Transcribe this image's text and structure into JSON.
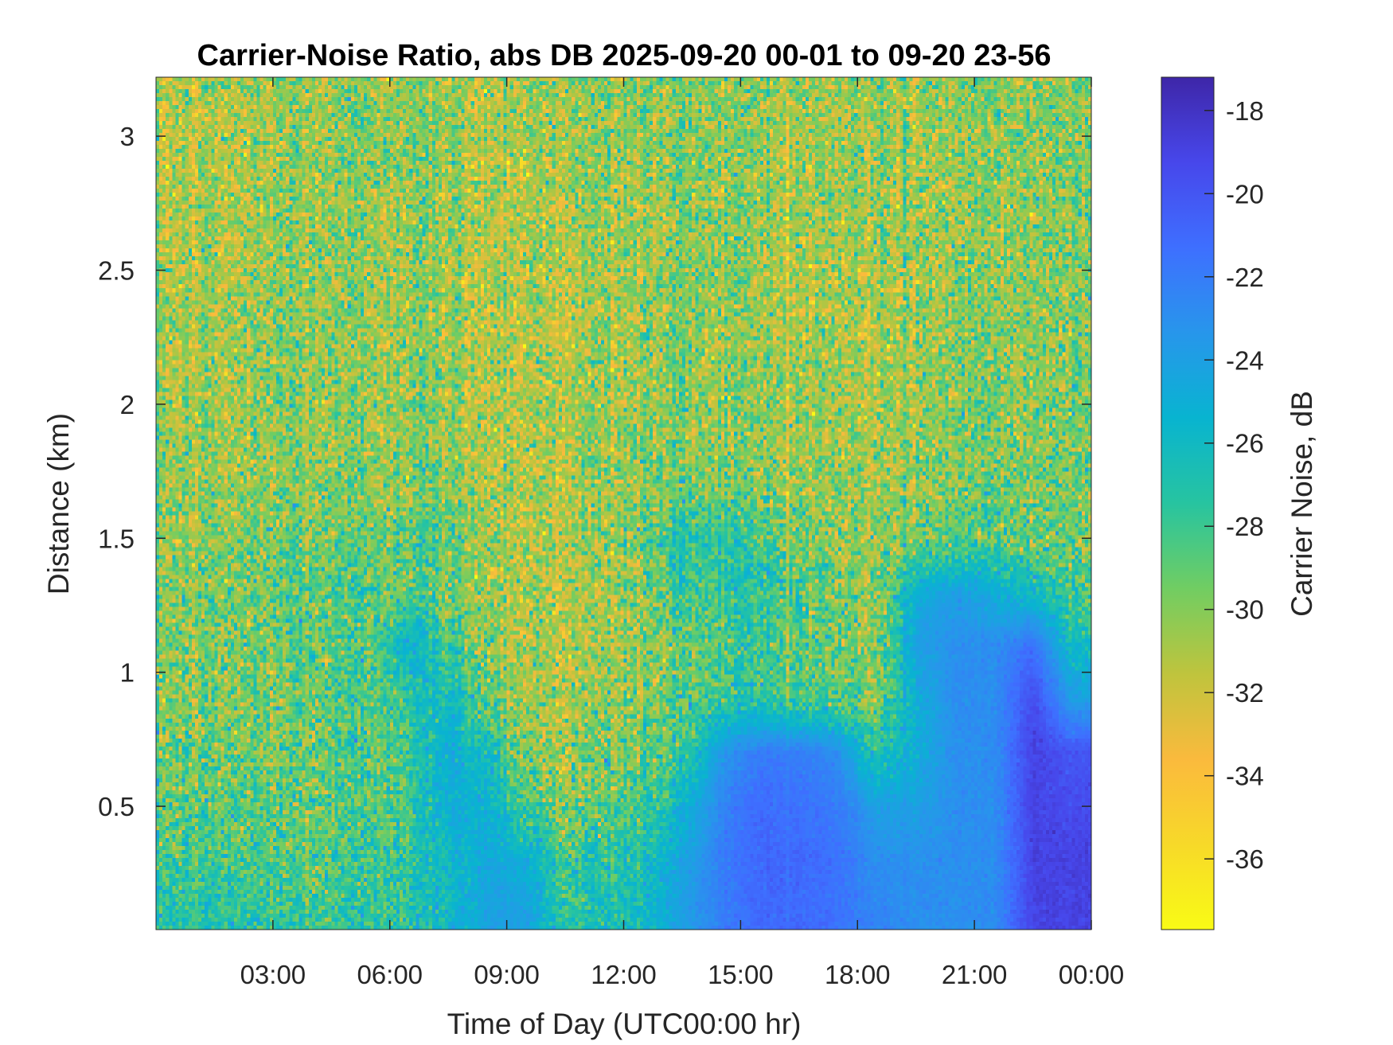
{
  "chart_data": {
    "type": "heatmap",
    "title": "Carrier-Noise Ratio, abs DB 2025-09-20 00-01 to 09-20 23-56",
    "xlabel": "Time of Day (UTC00:00 hr)",
    "ylabel": "Distance (km)",
    "colorbar_label": "Carrier Noise, dB",
    "colormap": "parula (reversed: high values dark blue, low values yellow)",
    "xlim_hours": [
      0,
      24
    ],
    "ylim": [
      0.04,
      3.22
    ],
    "clim": [
      -37.7,
      -17.2
    ],
    "x_ticks": [
      {
        "value": 3,
        "label": "03:00"
      },
      {
        "value": 6,
        "label": "06:00"
      },
      {
        "value": 9,
        "label": "09:00"
      },
      {
        "value": 12,
        "label": "12:00"
      },
      {
        "value": 15,
        "label": "15:00"
      },
      {
        "value": 18,
        "label": "18:00"
      },
      {
        "value": 21,
        "label": "21:00"
      },
      {
        "value": 24,
        "label": "00:00"
      }
    ],
    "y_ticks": [
      {
        "value": 0.5,
        "label": "0.5"
      },
      {
        "value": 1,
        "label": "1"
      },
      {
        "value": 1.5,
        "label": "1.5"
      },
      {
        "value": 2,
        "label": "2"
      },
      {
        "value": 2.5,
        "label": "2.5"
      },
      {
        "value": 3,
        "label": "3"
      }
    ],
    "colorbar_ticks": [
      {
        "value": -18,
        "label": "-18"
      },
      {
        "value": -20,
        "label": "-20"
      },
      {
        "value": -22,
        "label": "-22"
      },
      {
        "value": -24,
        "label": "-24"
      },
      {
        "value": -26,
        "label": "-26"
      },
      {
        "value": -28,
        "label": "-28"
      },
      {
        "value": -30,
        "label": "-30"
      },
      {
        "value": -32,
        "label": "-32"
      },
      {
        "value": -34,
        "label": "-34"
      },
      {
        "value": -36,
        "label": "-36"
      }
    ],
    "grid": false,
    "x_hours": [
      0.5,
      1.5,
      2.5,
      3.5,
      4.5,
      5.5,
      6.5,
      7.5,
      8.5,
      9.5,
      10.5,
      11.5,
      12.5,
      13.5,
      14.5,
      15.5,
      16.5,
      17.5,
      18.5,
      19.5,
      20.5,
      21.5,
      22.5,
      23.5
    ],
    "y_km": [
      0.1,
      0.3,
      0.5,
      0.7,
      0.9,
      1.1,
      1.3,
      1.5,
      1.7,
      1.9,
      2.1,
      2.3,
      2.5,
      2.7,
      2.9,
      3.1
    ],
    "z_db": [
      [
        -27,
        -27,
        -27.5,
        -27.5,
        -28,
        -27.5,
        -27,
        -26,
        -24,
        -24,
        -27,
        -27,
        -26,
        -24,
        -22,
        -21,
        -21,
        -21.5,
        -22.5,
        -23,
        -23,
        -23,
        -19,
        -19
      ],
      [
        -28,
        -28,
        -28.5,
        -28.5,
        -28.5,
        -28,
        -27.5,
        -26,
        -24.5,
        -25,
        -28,
        -27.5,
        -26.5,
        -24.5,
        -22,
        -21,
        -21,
        -21.5,
        -23,
        -23,
        -23,
        -23,
        -19,
        -19
      ],
      [
        -29,
        -29,
        -29,
        -29,
        -29,
        -28.5,
        -28,
        -25,
        -25,
        -28,
        -29.5,
        -29,
        -28,
        -25.5,
        -22.5,
        -21,
        -21.5,
        -22,
        -24,
        -24,
        -23,
        -23,
        -19,
        -19.5
      ],
      [
        -29.5,
        -29.5,
        -29.5,
        -29.5,
        -29,
        -28.5,
        -28,
        -25,
        -26,
        -30,
        -30.5,
        -30,
        -29.5,
        -28,
        -23.5,
        -22,
        -22,
        -23,
        -27,
        -25,
        -23,
        -23,
        -19,
        -20
      ],
      [
        -30,
        -30,
        -29.5,
        -29.5,
        -29,
        -28.5,
        -27,
        -26,
        -29,
        -30.5,
        -31,
        -30.5,
        -30,
        -29,
        -27.5,
        -27.5,
        -28,
        -29,
        -29.5,
        -25,
        -23,
        -23,
        -19.5,
        -24
      ],
      [
        -30,
        -30,
        -29.5,
        -29,
        -29,
        -28.5,
        -25,
        -28,
        -30,
        -31,
        -31,
        -31,
        -30.5,
        -29.5,
        -28,
        -28,
        -28.5,
        -29.5,
        -30,
        -24,
        -23,
        -23,
        -21.5,
        -26
      ],
      [
        -30,
        -30,
        -29.5,
        -29,
        -29,
        -28.5,
        -28.5,
        -29.5,
        -30.5,
        -31,
        -31,
        -31,
        -30,
        -28,
        -27.5,
        -27.5,
        -28.5,
        -30,
        -30.5,
        -25,
        -24,
        -25,
        -26,
        -28.5
      ],
      [
        -30.5,
        -30.5,
        -30,
        -29.5,
        -29.5,
        -29,
        -28.5,
        -29,
        -30.5,
        -31,
        -31,
        -30.5,
        -29.5,
        -27.5,
        -27,
        -28,
        -29.5,
        -30.5,
        -30.5,
        -29.5,
        -29,
        -29,
        -29.5,
        -29.5
      ],
      [
        -30.5,
        -30.5,
        -30.5,
        -30,
        -30,
        -30,
        -29.5,
        -30,
        -31,
        -31,
        -31,
        -30.5,
        -30,
        -29.5,
        -29.5,
        -30,
        -30.5,
        -30.5,
        -30.5,
        -30,
        -30,
        -29.5,
        -29.5,
        -29.5
      ],
      [
        -30.5,
        -31,
        -30.5,
        -30,
        -30.5,
        -30.5,
        -30,
        -30.5,
        -31,
        -31,
        -31,
        -30.5,
        -30.5,
        -30,
        -30,
        -30.5,
        -30.5,
        -31,
        -31,
        -30.5,
        -30,
        -30,
        -30,
        -29.5
      ],
      [
        -31,
        -31,
        -30.5,
        -30,
        -30.5,
        -30.5,
        -30,
        -30.5,
        -31,
        -31,
        -31,
        -31,
        -30.5,
        -30,
        -30,
        -30.5,
        -30.5,
        -31,
        -31,
        -30.5,
        -30,
        -30,
        -30,
        -29.5
      ],
      [
        -31,
        -31,
        -30.5,
        -30,
        -30.5,
        -30.5,
        -30,
        -31,
        -31,
        -31,
        -31.5,
        -31,
        -30.5,
        -30,
        -30,
        -30.5,
        -31,
        -31,
        -31,
        -30.5,
        -30.5,
        -30,
        -30,
        -30
      ],
      [
        -31,
        -31,
        -31,
        -30,
        -30.5,
        -30.5,
        -30,
        -31,
        -31,
        -31,
        -31,
        -31,
        -30.5,
        -30,
        -30,
        -30.5,
        -31,
        -31,
        -31,
        -30.5,
        -30.5,
        -30.5,
        -30,
        -30
      ],
      [
        -31.5,
        -31,
        -31,
        -30,
        -30.5,
        -30.5,
        -30,
        -30.5,
        -31,
        -31,
        -31,
        -30.5,
        -30.5,
        -30,
        -30,
        -30.5,
        -31,
        -31,
        -30.5,
        -30.5,
        -30.5,
        -30.5,
        -30,
        -30
      ],
      [
        -31.5,
        -31,
        -31,
        -30,
        -30.5,
        -30,
        -30,
        -30.5,
        -31,
        -31,
        -30.5,
        -30.5,
        -30.5,
        -30,
        -30,
        -30.5,
        -31,
        -31,
        -30.5,
        -30.5,
        -30.5,
        -30.5,
        -30,
        -30
      ],
      [
        -31,
        -31,
        -31,
        -30,
        -30.5,
        -30,
        -30,
        -30.5,
        -31,
        -30.5,
        -30.5,
        -30.5,
        -30,
        -30,
        -30,
        -30.5,
        -30.5,
        -31,
        -30.5,
        -30.5,
        -30.5,
        -30,
        -30,
        -30
      ]
    ]
  }
}
